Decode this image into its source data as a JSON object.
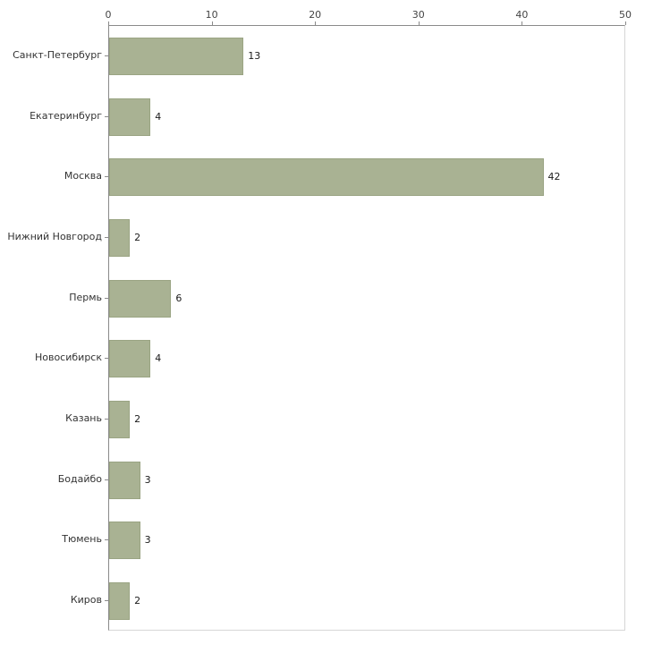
{
  "chart_data": {
    "type": "bar",
    "orientation": "horizontal",
    "title": "",
    "xlabel": "",
    "ylabel": "",
    "categories": [
      "Санкт-Петербург",
      "Екатеринбург",
      "Москва",
      "Нижний Новгород",
      "Пермь",
      "Новосибирск",
      "Казань",
      "Бодайбо",
      "Тюмень",
      "Киров"
    ],
    "values": [
      13,
      4,
      42,
      2,
      6,
      4,
      2,
      3,
      3,
      2
    ],
    "xlim": [
      0,
      50
    ],
    "xticks": [
      0,
      10,
      20,
      30,
      40,
      50
    ],
    "grid": false,
    "legend": false,
    "bar_color": "#a9b293",
    "bar_border_color": "#9aa483",
    "axis_color": "#8a8a8a",
    "frame_color": "#d6d6d6",
    "background_color": "#ffffff"
  }
}
